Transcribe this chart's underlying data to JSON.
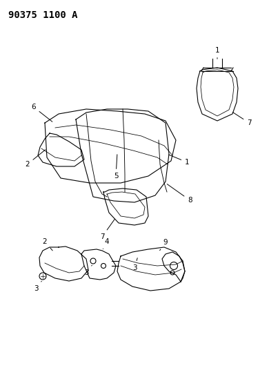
{
  "title": "90375 1100 A",
  "title_fontsize": 10,
  "title_fontweight": "bold",
  "bg_color": "#ffffff",
  "line_color": "#000000",
  "label_color": "#000000",
  "label_fontsize": 7.5,
  "fig_width": 3.9,
  "fig_height": 5.33,
  "dpi": 100
}
